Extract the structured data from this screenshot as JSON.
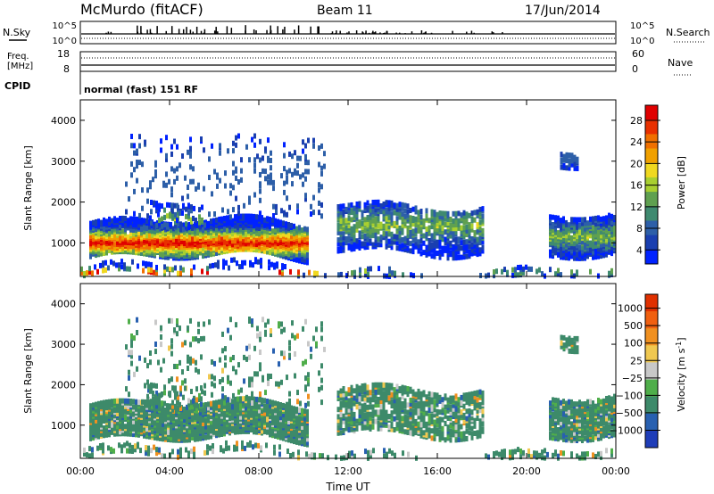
{
  "header": {
    "station": "McMurdo (fitACF)",
    "beam": "Beam 11",
    "date": "17/Jun/2014"
  },
  "info_panels": {
    "nsky_label": "N.Sky",
    "nsky_ticks": [
      "10^5",
      "10^0"
    ],
    "nsearch_label": "N.Search",
    "freq_label_1": "Freq.",
    "freq_label_2": "[MHz]",
    "freq_ticks": [
      "18",
      "8"
    ],
    "nave_label": "Nave",
    "nave_ticks": [
      "60",
      "0"
    ],
    "cpid_label": "CPID",
    "cpid_text": "normal (fast) 151 RF"
  },
  "chart_data": [
    {
      "type": "heatmap",
      "name": "power",
      "ylabel": "Slant Range [km]",
      "xlabel": "",
      "x_ticks": [
        "00:00",
        "04:00",
        "08:00",
        "12:00",
        "16:00",
        "20:00",
        "00:00"
      ],
      "y_ticks": [
        "1000",
        "2000",
        "3000",
        "4000"
      ],
      "ylim": [
        180,
        4500
      ],
      "colorbar": {
        "label": "Power [dB]",
        "ticks": [
          "4",
          "8",
          "12",
          "16",
          "20",
          "24",
          "28"
        ],
        "colors": [
          "#0022ff",
          "#1a3fb0",
          "#2d5fa8",
          "#3f8a70",
          "#5fa050",
          "#a8cf30",
          "#f0d820",
          "#f0a000",
          "#f07000",
          "#e83000",
          "#e00000"
        ]
      }
    },
    {
      "type": "heatmap",
      "name": "velocity",
      "ylabel": "Slant Range [km]",
      "xlabel": "Time UT",
      "x_ticks": [
        "00:00",
        "04:00",
        "08:00",
        "12:00",
        "16:00",
        "20:00",
        "00:00"
      ],
      "y_ticks": [
        "1000",
        "2000",
        "3000",
        "4000"
      ],
      "ylim": [
        180,
        4500
      ],
      "colorbar": {
        "label": "Velocity [m s",
        "label_exp": "-1",
        "label_end": "]",
        "ticks": [
          "1000",
          "500",
          "100",
          "25",
          "−25",
          "−100",
          "−500",
          "−1000"
        ],
        "colors": [
          "#1f3db8",
          "#2860b0",
          "#3d8a6a",
          "#4fae4a",
          "#c8c8c8",
          "#f0c850",
          "#f09020",
          "#f06010",
          "#e03000"
        ]
      }
    }
  ]
}
